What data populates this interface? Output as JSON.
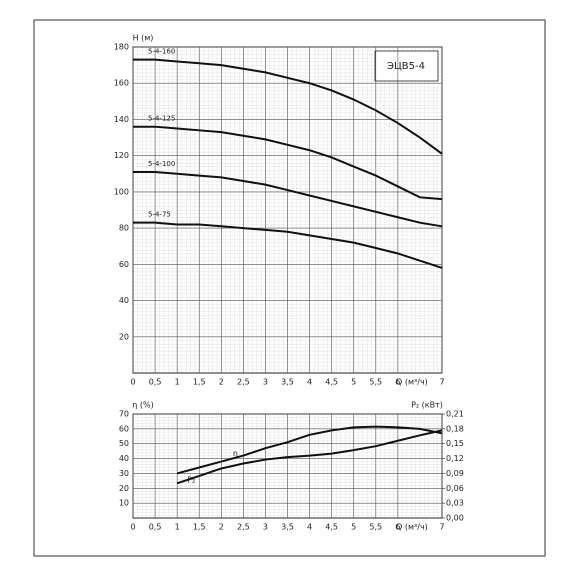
{
  "chart_data": [
    {
      "type": "line",
      "title": "ЭЦВ5-4",
      "y_label": "Н (м)",
      "x_label": "Q (м³/ч)",
      "x": [
        0,
        0.5,
        1,
        1.5,
        2,
        2.5,
        3,
        3.5,
        4,
        4.5,
        5,
        5.5,
        6,
        6.5,
        7
      ],
      "xlim": [
        0,
        7
      ],
      "xticks": [
        0,
        {
          "value": 0.5,
          "label": "0,5"
        },
        1,
        {
          "value": 1.5,
          "label": "1,5"
        },
        2,
        {
          "value": 2.5,
          "label": "2,5"
        },
        3,
        {
          "value": 3.5,
          "label": "3,5"
        },
        4,
        {
          "value": 4.5,
          "label": "4,5"
        },
        5,
        {
          "value": 5.5,
          "label": "5,5"
        },
        6,
        7
      ],
      "ylim": [
        0,
        180
      ],
      "yticks": [
        20,
        40,
        60,
        80,
        100,
        120,
        140,
        160,
        180
      ],
      "grid": true,
      "series": [
        {
          "name": "5-4-160",
          "color": "#111111",
          "values": [
            173,
            173,
            172,
            171,
            170,
            168,
            166,
            163,
            160,
            156,
            151,
            145,
            138,
            130,
            121
          ]
        },
        {
          "name": "5-4-125",
          "color": "#111111",
          "values": [
            136,
            136,
            135,
            134,
            133,
            131,
            129,
            126,
            123,
            119,
            114,
            109,
            103,
            97,
            96
          ]
        },
        {
          "name": "5-4-100",
          "color": "#111111",
          "values": [
            111,
            111,
            110,
            109,
            108,
            106,
            104,
            101,
            98,
            95,
            92,
            89,
            86,
            83,
            81
          ]
        },
        {
          "name": "5-4-75",
          "color": "#111111",
          "values": [
            83,
            83,
            82,
            82,
            81,
            80,
            79,
            78,
            76,
            74,
            72,
            69,
            66,
            62,
            58
          ]
        }
      ]
    },
    {
      "type": "line",
      "y_label": "η (%)",
      "y2_label": "P₂ (кВт)",
      "x_label": "Q (м³/ч)",
      "x": [
        1,
        1.5,
        2,
        2.5,
        3,
        3.5,
        4,
        4.5,
        5,
        5.5,
        6,
        6.5,
        7
      ],
      "xlim": [
        0,
        7
      ],
      "xticks": [
        0,
        {
          "value": 0.5,
          "label": "0,5"
        },
        1,
        {
          "value": 1.5,
          "label": "1,5"
        },
        2,
        {
          "value": 2.5,
          "label": "2,5"
        },
        3,
        {
          "value": 3.5,
          "label": "3,5"
        },
        4,
        {
          "value": 4.5,
          "label": "4,5"
        },
        5,
        {
          "value": 5.5,
          "label": "5,5"
        },
        6,
        7
      ],
      "ylim": [
        0,
        70
      ],
      "yticks": [
        10,
        20,
        30,
        40,
        50,
        60,
        70
      ],
      "y2lim": [
        0,
        0.21
      ],
      "y2ticks": [
        {
          "value": 0,
          "label": "0,00"
        },
        {
          "value": 0.03,
          "label": "0,03"
        },
        {
          "value": 0.06,
          "label": "0,06"
        },
        {
          "value": 0.09,
          "label": "0,09"
        },
        {
          "value": 0.12,
          "label": "0,12"
        },
        {
          "value": 0.15,
          "label": "0,15"
        },
        {
          "value": 0.18,
          "label": "0,18"
        },
        {
          "value": 0.21,
          "label": "0,21"
        }
      ],
      "grid": true,
      "series": [
        {
          "name": "η",
          "color": "#111111",
          "values": [
            30,
            34,
            38,
            42,
            47,
            51,
            56,
            59,
            61,
            61.5,
            61,
            60,
            57
          ]
        },
        {
          "name": "P₂",
          "color": "#111111",
          "axis": "y2",
          "values": [
            0.07,
            0.085,
            0.1,
            0.11,
            0.118,
            0.123,
            0.126,
            0.13,
            0.137,
            0.145,
            0.156,
            0.167,
            0.177
          ]
        }
      ]
    }
  ]
}
